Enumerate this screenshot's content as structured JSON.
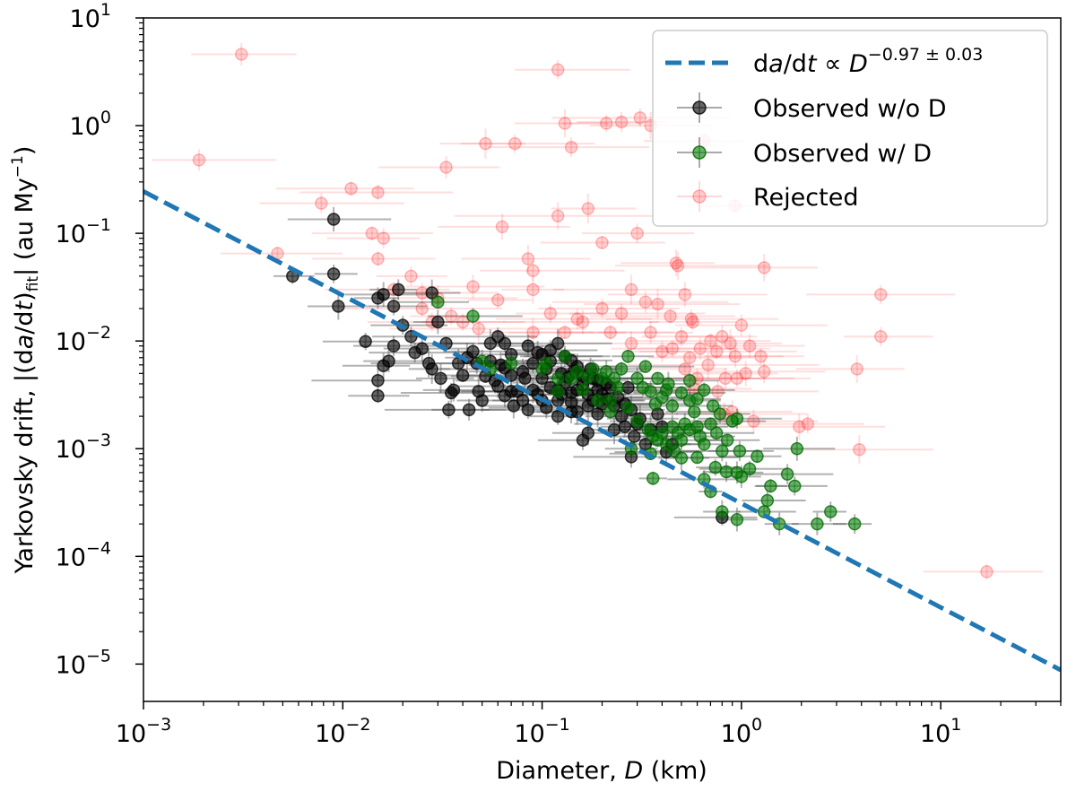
{
  "chart_data": {
    "type": "scatter",
    "xscale": "log",
    "yscale": "log",
    "xlim": [
      0.001,
      40
    ],
    "ylim": [
      4.5e-06,
      10
    ],
    "xlabel_main": "Diameter, ",
    "xlabel_var": "D",
    "xlabel_unit": " (km)",
    "ylabel_main": "Yarkovsky drift, |(d",
    "ylabel_var_a": "a",
    "ylabel_slash": "/d",
    "ylabel_var_t": "t",
    "ylabel_close": ")",
    "ylabel_sub": "fit",
    "ylabel_units": "| (au My",
    "ylabel_exp": "−1",
    "ylabel_end": ")",
    "x_ticks": [
      {
        "base": "10",
        "exp": "−3",
        "value": 0.001
      },
      {
        "base": "10",
        "exp": "−2",
        "value": 0.01
      },
      {
        "base": "10",
        "exp": "−1",
        "value": 0.1
      },
      {
        "base": "10",
        "exp": "0",
        "value": 1
      },
      {
        "base": "10",
        "exp": "1",
        "value": 10
      }
    ],
    "y_ticks": [
      {
        "base": "10",
        "exp": "−5",
        "value": 1e-05
      },
      {
        "base": "10",
        "exp": "−4",
        "value": 0.0001
      },
      {
        "base": "10",
        "exp": "−3",
        "value": 0.001
      },
      {
        "base": "10",
        "exp": "−2",
        "value": 0.01
      },
      {
        "base": "10",
        "exp": "−1",
        "value": 0.1
      },
      {
        "base": "10",
        "exp": "0",
        "value": 1
      },
      {
        "base": "10",
        "exp": "1",
        "value": 10
      }
    ],
    "fit_line": {
      "label_a": "d",
      "label_var_a": "a",
      "label_b": "/d",
      "label_var_t": "t",
      "label_c": " ∝ ",
      "label_var_d": "D",
      "label_exp": "−0.97 ± 0.03",
      "color": "#1f77b4",
      "x": [
        0.001,
        40
      ],
      "y": [
        0.245,
        8.8e-06
      ]
    },
    "legend": {
      "position": "upper right",
      "observed_no_d": "Observed w/o D",
      "observed_d": "Observed w/ D",
      "rejected": "Rejected"
    },
    "colors": {
      "observed_no_d": "#000000",
      "observed_d": "#008000",
      "rejected": "#ff0000"
    },
    "rejected": [
      [
        0.0031,
        4.6,
        0.0095
      ],
      [
        0.0019,
        0.48,
        0.005
      ],
      [
        0.0078,
        0.19
      ],
      [
        0.011,
        0.26
      ],
      [
        0.015,
        0.24
      ],
      [
        0.014,
        0.1
      ],
      [
        0.016,
        0.09
      ],
      [
        0.033,
        0.41
      ],
      [
        0.052,
        0.68
      ],
      [
        0.073,
        0.68
      ],
      [
        0.12,
        3.3,
        0.03
      ],
      [
        0.13,
        1.05
      ],
      [
        0.14,
        0.63
      ],
      [
        0.21,
        1.05
      ],
      [
        0.25,
        1.08
      ],
      [
        0.31,
        1.18
      ],
      [
        0.35,
        1.0
      ],
      [
        0.65,
        0.72
      ],
      [
        0.063,
        0.115
      ],
      [
        0.12,
        0.145
      ],
      [
        0.2,
        0.082
      ],
      [
        0.3,
        0.1
      ],
      [
        0.17,
        0.17
      ],
      [
        0.09,
        0.045
      ],
      [
        0.085,
        0.058
      ],
      [
        0.47,
        0.053
      ],
      [
        0.57,
        0.015
      ],
      [
        0.48,
        0.05
      ],
      [
        0.93,
        0.18
      ],
      [
        1.3,
        0.048
      ],
      [
        0.0047,
        0.065
      ],
      [
        0.022,
        0.04
      ],
      [
        0.015,
        0.058
      ],
      [
        0.018,
        0.03
      ],
      [
        0.025,
        0.028
      ],
      [
        0.03,
        0.025
      ],
      [
        0.045,
        0.032
      ],
      [
        0.09,
        0.03
      ],
      [
        0.11,
        0.018
      ],
      [
        0.2,
        0.02
      ],
      [
        0.25,
        0.018
      ],
      [
        0.33,
        0.023
      ],
      [
        0.28,
        0.03
      ],
      [
        0.52,
        0.027
      ],
      [
        0.38,
        0.022
      ],
      [
        0.44,
        0.017
      ],
      [
        0.56,
        0.016
      ],
      [
        0.15,
        0.016
      ],
      [
        0.5,
        0.011
      ],
      [
        0.7,
        0.01
      ],
      [
        0.8,
        0.011
      ],
      [
        1.0,
        0.014
      ],
      [
        1.1,
        0.009
      ],
      [
        0.88,
        0.0095
      ],
      [
        0.75,
        0.008
      ],
      [
        0.62,
        0.0085
      ],
      [
        0.45,
        0.0085
      ],
      [
        0.55,
        0.007
      ],
      [
        0.93,
        0.0072
      ],
      [
        1.25,
        0.0072
      ],
      [
        1.05,
        0.005
      ],
      [
        0.95,
        0.0045
      ],
      [
        0.83,
        0.0045
      ],
      [
        0.68,
        0.006
      ],
      [
        0.6,
        0.0045
      ],
      [
        0.58,
        0.0036
      ],
      [
        0.52,
        0.0055
      ],
      [
        0.76,
        0.0034
      ],
      [
        0.9,
        0.0022
      ],
      [
        0.82,
        0.0021
      ],
      [
        1.15,
        0.0018
      ],
      [
        1.95,
        0.0016
      ],
      [
        2.15,
        0.0017
      ],
      [
        3.9,
        0.00098,
        0.012
      ],
      [
        3.8,
        0.0055
      ],
      [
        5.0,
        0.027,
        0.02
      ],
      [
        5.0,
        0.011
      ],
      [
        1.3,
        0.0052
      ],
      [
        17,
        7.2e-05,
        0.12
      ],
      [
        0.35,
        0.012
      ],
      [
        0.28,
        0.0095
      ],
      [
        0.4,
        0.008
      ],
      [
        0.22,
        0.012
      ],
      [
        0.16,
        0.015
      ],
      [
        0.13,
        0.012
      ],
      [
        0.048,
        0.013
      ],
      [
        0.035,
        0.017
      ],
      [
        0.028,
        0.015
      ],
      [
        0.025,
        0.02
      ],
      [
        0.06,
        0.024
      ],
      [
        0.04,
        0.015
      ],
      [
        0.09,
        0.012
      ]
    ],
    "observed_no_d": [
      [
        0.0056,
        0.04
      ],
      [
        0.009,
        0.042
      ],
      [
        0.0095,
        0.021
      ],
      [
        0.009,
        0.135
      ],
      [
        0.013,
        0.0099
      ],
      [
        0.018,
        0.009
      ],
      [
        0.015,
        0.025
      ],
      [
        0.016,
        0.027
      ],
      [
        0.019,
        0.03
      ],
      [
        0.018,
        0.021
      ],
      [
        0.02,
        0.014
      ],
      [
        0.017,
        0.0065
      ],
      [
        0.016,
        0.0059
      ],
      [
        0.015,
        0.0043
      ],
      [
        0.022,
        0.011
      ],
      [
        0.023,
        0.0078
      ],
      [
        0.028,
        0.028
      ],
      [
        0.03,
        0.015
      ],
      [
        0.033,
        0.0095
      ],
      [
        0.028,
        0.0055
      ],
      [
        0.031,
        0.0045
      ],
      [
        0.035,
        0.0033
      ],
      [
        0.015,
        0.0031
      ],
      [
        0.04,
        0.0048
      ],
      [
        0.042,
        0.007
      ],
      [
        0.036,
        0.0035
      ],
      [
        0.047,
        0.0062
      ],
      [
        0.05,
        0.0028
      ],
      [
        0.034,
        0.0023
      ],
      [
        0.052,
        0.0047
      ],
      [
        0.058,
        0.0043
      ],
      [
        0.055,
        0.0095
      ],
      [
        0.06,
        0.011
      ],
      [
        0.065,
        0.0056
      ],
      [
        0.07,
        0.0075
      ],
      [
        0.075,
        0.0034
      ],
      [
        0.072,
        0.0025
      ],
      [
        0.085,
        0.0023
      ],
      [
        0.08,
        0.0052
      ],
      [
        0.09,
        0.0035
      ],
      [
        0.095,
        0.0032
      ],
      [
        0.1,
        0.0045
      ],
      [
        0.11,
        0.0037
      ],
      [
        0.11,
        0.0065
      ],
      [
        0.12,
        0.0028
      ],
      [
        0.12,
        0.0035
      ],
      [
        0.125,
        0.0032
      ],
      [
        0.13,
        0.0041
      ],
      [
        0.14,
        0.0033
      ],
      [
        0.14,
        0.0027
      ],
      [
        0.15,
        0.0035
      ],
      [
        0.15,
        0.0022
      ],
      [
        0.16,
        0.0039
      ],
      [
        0.17,
        0.0032
      ],
      [
        0.17,
        0.0025
      ],
      [
        0.18,
        0.0045
      ],
      [
        0.18,
        0.0028
      ],
      [
        0.19,
        0.0035
      ],
      [
        0.2,
        0.0032
      ],
      [
        0.2,
        0.0026
      ],
      [
        0.21,
        0.0029
      ],
      [
        0.22,
        0.0037
      ],
      [
        0.23,
        0.0025
      ],
      [
        0.24,
        0.003
      ],
      [
        0.25,
        0.002
      ],
      [
        0.26,
        0.0026
      ],
      [
        0.28,
        0.0023
      ],
      [
        0.3,
        0.0017
      ],
      [
        0.27,
        0.0037
      ],
      [
        0.23,
        0.0015
      ],
      [
        0.16,
        0.0012
      ],
      [
        0.17,
        0.0014
      ],
      [
        0.31,
        0.0019
      ],
      [
        0.35,
        0.0015
      ],
      [
        0.38,
        0.0021
      ],
      [
        0.4,
        0.0016
      ],
      [
        0.45,
        0.0011
      ],
      [
        0.42,
        0.00093
      ],
      [
        0.28,
        0.00084
      ],
      [
        0.8,
        0.00023
      ],
      [
        0.07,
        0.0034
      ],
      [
        0.09,
        0.0062
      ],
      [
        0.1,
        0.0075
      ],
      [
        0.11,
        0.0082
      ],
      [
        0.12,
        0.0095
      ],
      [
        0.13,
        0.0072
      ],
      [
        0.14,
        0.0066
      ],
      [
        0.15,
        0.0058
      ],
      [
        0.095,
        0.0078
      ],
      [
        0.105,
        0.0055
      ],
      [
        0.085,
        0.009
      ],
      [
        0.065,
        0.0095
      ],
      [
        0.045,
        0.008
      ],
      [
        0.038,
        0.0062
      ],
      [
        0.062,
        0.006
      ],
      [
        0.07,
        0.0048
      ],
      [
        0.082,
        0.0045
      ],
      [
        0.125,
        0.005
      ],
      [
        0.135,
        0.0046
      ],
      [
        0.145,
        0.0053
      ],
      [
        0.16,
        0.0047
      ],
      [
        0.175,
        0.0055
      ],
      [
        0.19,
        0.0043
      ],
      [
        0.21,
        0.004
      ],
      [
        0.14,
        0.0022
      ],
      [
        0.12,
        0.002
      ],
      [
        0.105,
        0.0024
      ],
      [
        0.1,
        0.0028
      ],
      [
        0.19,
        0.0021
      ],
      [
        0.08,
        0.0028
      ],
      [
        0.06,
        0.0038
      ],
      [
        0.055,
        0.0065
      ],
      [
        0.025,
        0.0085
      ],
      [
        0.027,
        0.0062
      ],
      [
        0.043,
        0.0023
      ],
      [
        0.048,
        0.0034
      ],
      [
        0.065,
        0.0031
      ],
      [
        0.29,
        0.0013
      ],
      [
        0.33,
        0.0011
      ],
      [
        0.26,
        0.0016
      ]
    ],
    "observed_d": [
      [
        0.03,
        0.023
      ],
      [
        0.045,
        0.017
      ],
      [
        0.05,
        0.0065
      ],
      [
        0.055,
        0.0055
      ],
      [
        0.07,
        0.0062
      ],
      [
        0.1,
        0.0055
      ],
      [
        0.105,
        0.0062
      ],
      [
        0.12,
        0.0045
      ],
      [
        0.13,
        0.0072
      ],
      [
        0.15,
        0.0052
      ],
      [
        0.17,
        0.0046
      ],
      [
        0.18,
        0.0055
      ],
      [
        0.2,
        0.0045
      ],
      [
        0.21,
        0.0052
      ],
      [
        0.23,
        0.0045
      ],
      [
        0.25,
        0.0055
      ],
      [
        0.27,
        0.0072
      ],
      [
        0.3,
        0.0045
      ],
      [
        0.33,
        0.0058
      ],
      [
        0.32,
        0.0037
      ],
      [
        0.35,
        0.0034
      ],
      [
        0.37,
        0.0026
      ],
      [
        0.4,
        0.003
      ],
      [
        0.42,
        0.0035
      ],
      [
        0.45,
        0.0025
      ],
      [
        0.5,
        0.0033
      ],
      [
        0.55,
        0.0028
      ],
      [
        0.6,
        0.0029
      ],
      [
        0.22,
        0.0028
      ],
      [
        0.27,
        0.0024
      ],
      [
        0.3,
        0.0018
      ],
      [
        0.34,
        0.0015
      ],
      [
        0.36,
        0.0013
      ],
      [
        0.38,
        0.0012
      ],
      [
        0.4,
        0.0014
      ],
      [
        0.42,
        0.0011
      ],
      [
        0.45,
        0.0016
      ],
      [
        0.48,
        0.0014
      ],
      [
        0.5,
        0.0012
      ],
      [
        0.52,
        0.0017
      ],
      [
        0.55,
        0.0015
      ],
      [
        0.6,
        0.0016
      ],
      [
        0.62,
        0.0013
      ],
      [
        0.65,
        0.0011
      ],
      [
        0.7,
        0.0017
      ],
      [
        0.75,
        0.0014
      ],
      [
        0.85,
        0.0012
      ],
      [
        0.95,
        0.0019
      ],
      [
        0.9,
        0.0018
      ],
      [
        0.78,
        0.0021
      ],
      [
        0.98,
        0.00095
      ],
      [
        1.0,
        0.00055
      ],
      [
        1.2,
        0.00085
      ],
      [
        1.35,
        0.00033
      ],
      [
        1.4,
        0.00045
      ],
      [
        1.7,
        0.00058
      ],
      [
        1.85,
        0.00045
      ],
      [
        1.9,
        0.001
      ],
      [
        2.8,
        0.00026
      ],
      [
        2.4,
        0.0002
      ],
      [
        3.7,
        0.0002
      ],
      [
        1.55,
        0.0002
      ],
      [
        1.3,
        0.00026
      ],
      [
        0.95,
        0.00022
      ],
      [
        0.8,
        0.00026
      ],
      [
        0.7,
        0.0004
      ],
      [
        0.65,
        0.00052
      ],
      [
        0.74,
        0.00067
      ],
      [
        0.84,
        0.00061
      ],
      [
        0.6,
        0.00083
      ],
      [
        0.35,
        0.0009
      ],
      [
        0.36,
        0.00053
      ],
      [
        0.28,
        0.001
      ],
      [
        0.12,
        0.0034
      ],
      [
        0.14,
        0.0045
      ],
      [
        0.16,
        0.0035
      ],
      [
        0.19,
        0.0028
      ],
      [
        0.24,
        0.0037
      ],
      [
        0.22,
        0.0022
      ],
      [
        0.38,
        0.0045
      ],
      [
        0.43,
        0.004
      ],
      [
        0.55,
        0.0043
      ],
      [
        0.65,
        0.0035
      ],
      [
        0.58,
        0.0022
      ],
      [
        0.8,
        0.00095
      ],
      [
        0.5,
        0.00082
      ],
      [
        0.46,
        0.00095
      ],
      [
        0.72,
        0.0025
      ],
      [
        0.95,
        0.0006
      ],
      [
        1.1,
        0.00065
      ]
    ]
  }
}
